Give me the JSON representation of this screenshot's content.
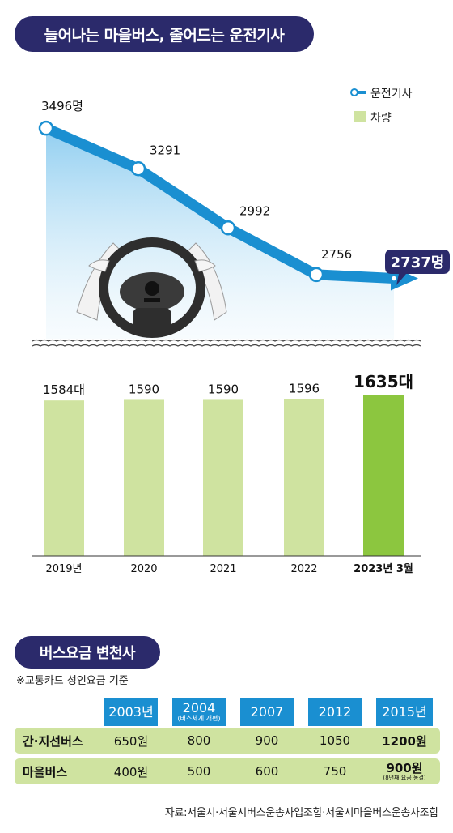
{
  "title": "늘어나는 마을버스, 줄어드는 운전기사",
  "legend": {
    "drivers": "운전기사",
    "vehicles": "차량"
  },
  "colors": {
    "navy": "#2b2a6b",
    "blue": "#1a8fd1",
    "bar": "#cfe3a0",
    "bar_highlight": "#8cc63f"
  },
  "chart_data": [
    {
      "type": "line",
      "series": [
        {
          "name": "운전기사",
          "x": [
            "2019",
            "2020",
            "2021",
            "2022",
            "2023.3"
          ],
          "values": [
            3496,
            3291,
            2992,
            2756,
            2737
          ],
          "labels": [
            "3496명",
            "3291",
            "2992",
            "2756",
            "2737명"
          ]
        }
      ],
      "ylim": [
        2600,
        3550
      ]
    },
    {
      "type": "bar",
      "series": [
        {
          "name": "차량",
          "values": [
            1584,
            1590,
            1590,
            1596,
            1635
          ],
          "labels": [
            "1584대",
            "1590",
            "1590",
            "1596",
            "1635대"
          ]
        }
      ],
      "categories": [
        "2019년",
        "2020",
        "2021",
        "2022",
        "2023년 3월"
      ],
      "ylim": [
        0,
        1635
      ]
    }
  ],
  "fare_section": {
    "title": "버스요금 변천사",
    "note": "※교통카드 성인요금 기준",
    "years": [
      {
        "label": "2003년",
        "sub": ""
      },
      {
        "label": "2004",
        "sub": "(버스체계 개편)"
      },
      {
        "label": "2007",
        "sub": ""
      },
      {
        "label": "2012",
        "sub": ""
      },
      {
        "label": "2015년",
        "sub": ""
      }
    ],
    "rows": [
      {
        "label": "간·지선버스",
        "values": [
          "650원",
          "800",
          "900",
          "1050",
          "1200원"
        ],
        "subs": [
          "",
          "",
          "",
          "",
          ""
        ]
      },
      {
        "label": "마을버스",
        "values": [
          "400원",
          "500",
          "600",
          "750",
          "900원"
        ],
        "subs": [
          "",
          "",
          "",
          "",
          "(8년째 요금 동결)"
        ]
      }
    ]
  },
  "source": "자료:서울시·서울시버스운송사업조합·서울시마을버스운송사조합"
}
